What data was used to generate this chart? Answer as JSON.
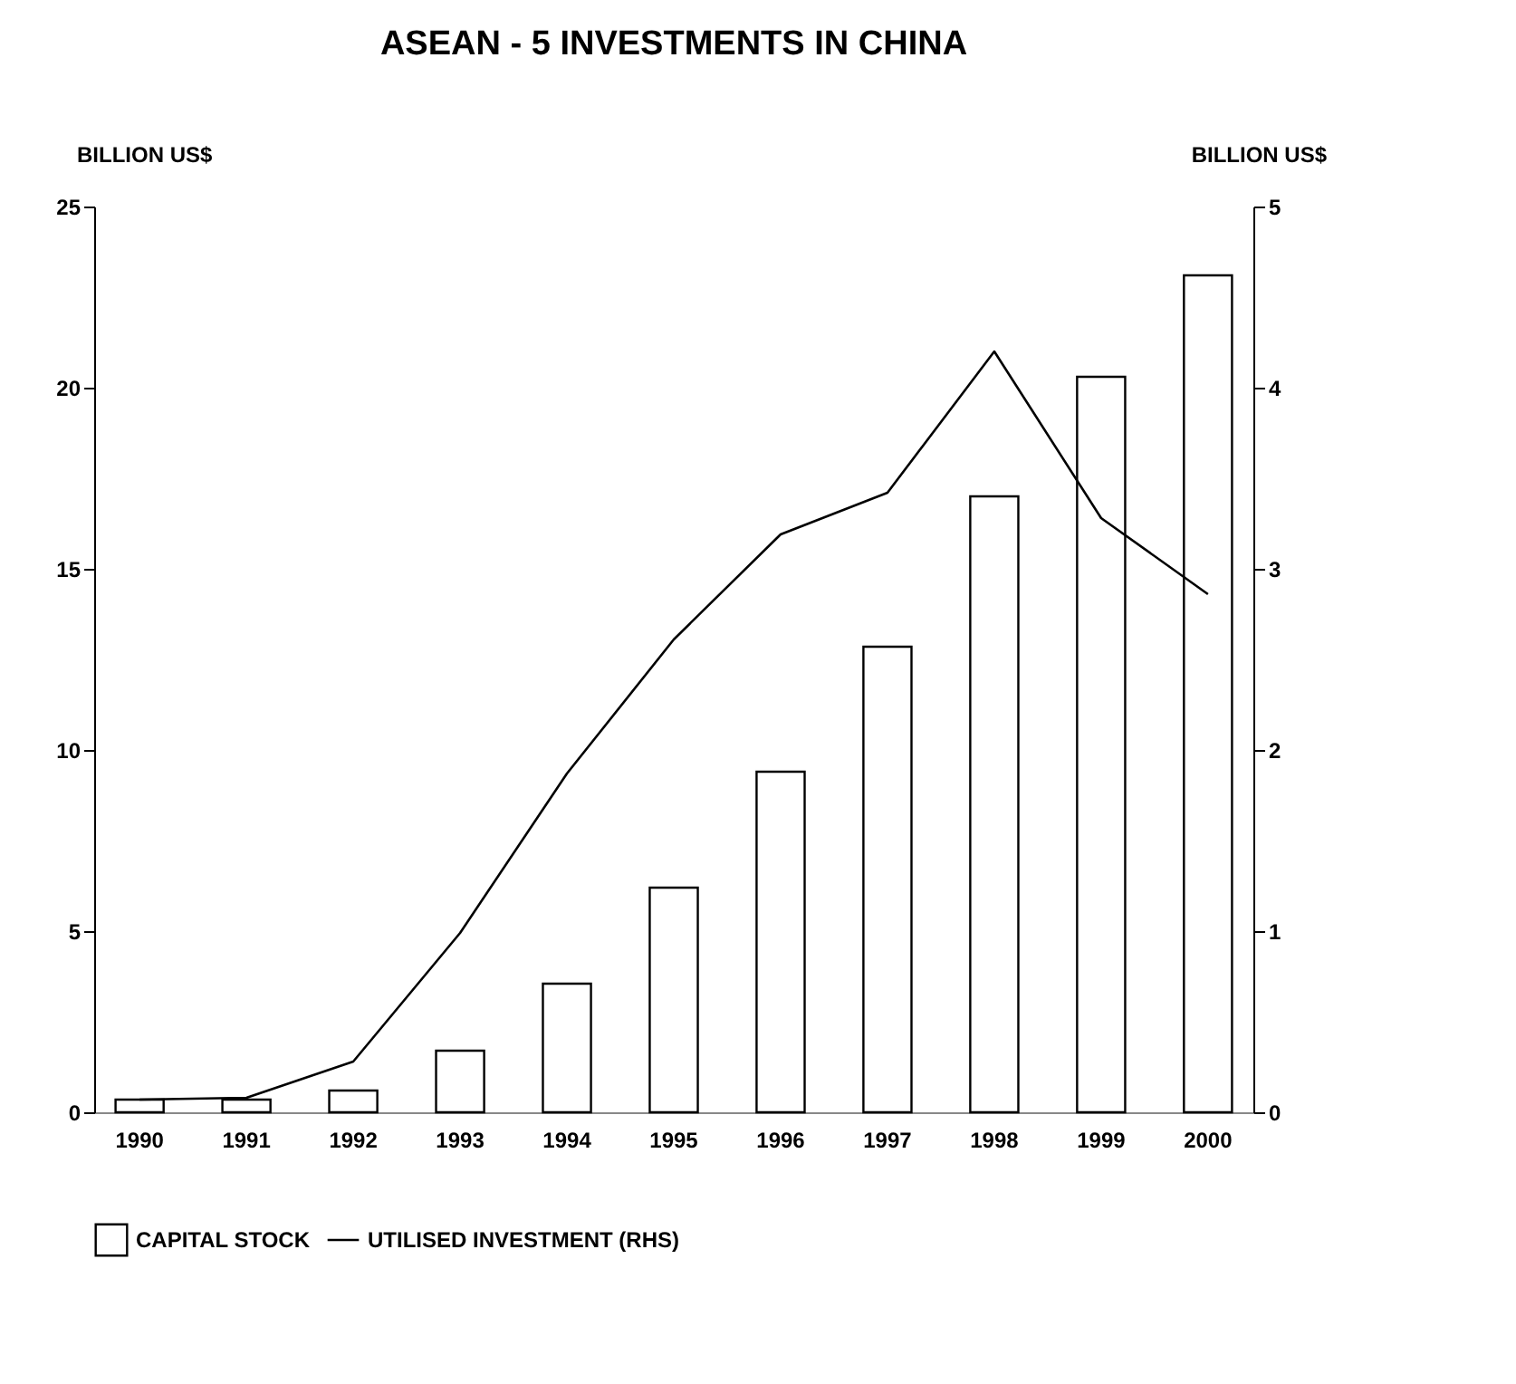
{
  "chart_data": {
    "type": "bar",
    "title": "ASEAN - 5 INVESTMENTS IN CHINA",
    "ylabel": "BILLION US$",
    "y2label": "BILLION US$",
    "categories": [
      "1990",
      "1991",
      "1992",
      "1993",
      "1994",
      "1995",
      "1996",
      "1997",
      "1998",
      "1999",
      "2000"
    ],
    "series": [
      {
        "name": "CAPITAL STOCK",
        "color": "#ffffff",
        "values": [
          0.35,
          0.35,
          0.6,
          1.7,
          3.55,
          6.2,
          9.4,
          12.85,
          17.0,
          20.3,
          23.1
        ]
      },
      {
        "name": "UTILISED INVESTMENT (RHS)",
        "type": "line",
        "axis": "y2",
        "color": "#000000",
        "values": [
          0.07,
          0.08,
          0.28,
          0.99,
          1.87,
          2.61,
          3.19,
          3.42,
          4.2,
          3.28,
          2.86
        ]
      }
    ],
    "ylim": [
      0,
      25
    ],
    "yticks": [
      0,
      5,
      10,
      15,
      20,
      25
    ],
    "y2lim": [
      0,
      5
    ],
    "y2ticks": [
      0,
      1,
      2,
      3,
      4,
      5
    ],
    "grid": false,
    "legend": "bottom",
    "marker": "none",
    "line_style": "solid"
  }
}
